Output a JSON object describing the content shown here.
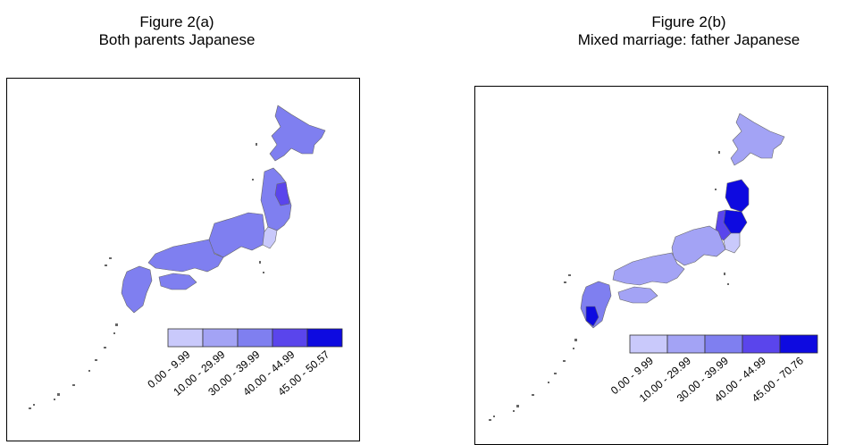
{
  "figures": [
    {
      "title": "Figure 2(a)",
      "subtitle": "Both parents Japanese",
      "legend": [
        {
          "label": "0.00 - 9.99",
          "color": "#c9c9fb"
        },
        {
          "label": "10.00 - 29.99",
          "color": "#a3a3f5"
        },
        {
          "label": "30.00 - 39.99",
          "color": "#7f7ff0"
        },
        {
          "label": "40.00 - 44.99",
          "color": "#5a45ec"
        },
        {
          "label": "45.00 - 50.57",
          "color": "#0e0ae0"
        }
      ]
    },
    {
      "title": "Figure 2(b)",
      "subtitle": "Mixed marriage: father Japanese",
      "legend": [
        {
          "label": "0.00 - 9.99",
          "color": "#c9c9fb"
        },
        {
          "label": "10.00 - 29.99",
          "color": "#a3a3f5"
        },
        {
          "label": "30.00 - 39.99",
          "color": "#7f7ff0"
        },
        {
          "label": "40.00 - 44.99",
          "color": "#5a45ec"
        },
        {
          "label": "45.00 - 70.76",
          "color": "#0e0ae0"
        }
      ]
    }
  ],
  "colors": {
    "border": "#666666",
    "island_gray": "#666666"
  }
}
